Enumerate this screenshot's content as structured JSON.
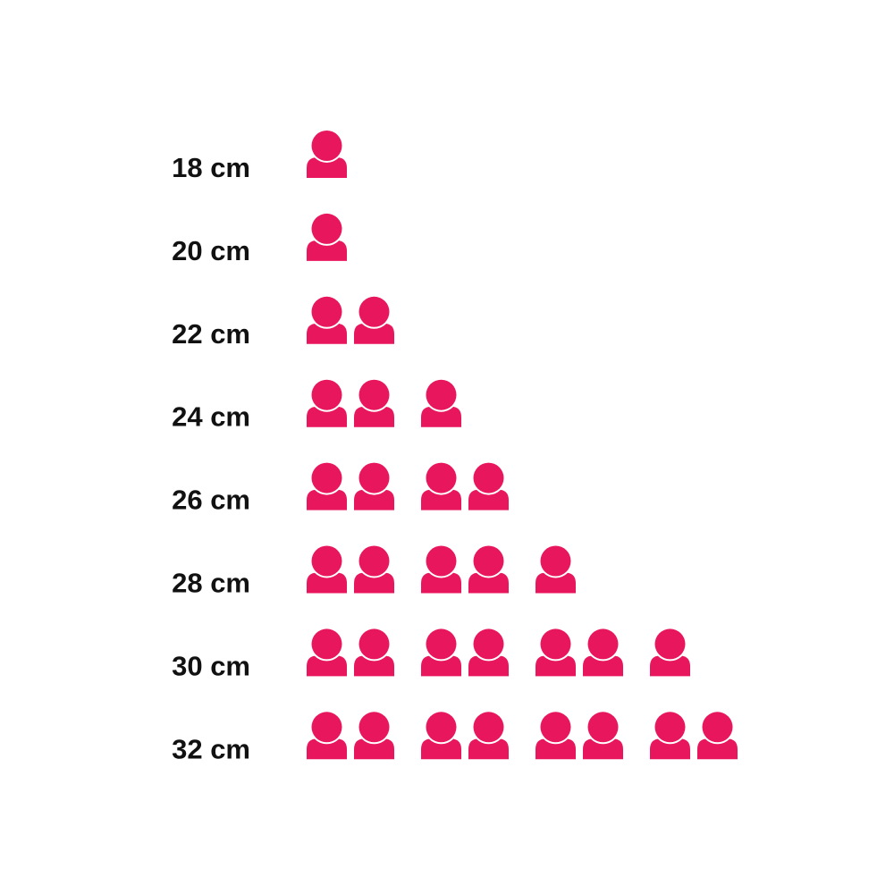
{
  "chart_data": {
    "type": "pictograph",
    "categories": [
      "18 cm",
      "20 cm",
      "22 cm",
      "24 cm",
      "26 cm",
      "28 cm",
      "30 cm",
      "32 cm"
    ],
    "values": [
      1,
      1,
      2,
      3,
      4,
      5,
      7,
      8
    ],
    "icon": "person-icon",
    "color": "#E8175D"
  }
}
